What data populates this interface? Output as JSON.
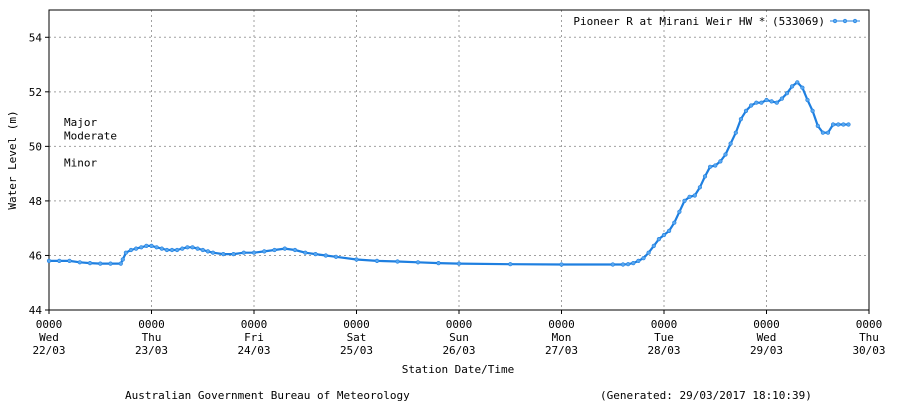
{
  "chart_data": {
    "type": "line",
    "title": "",
    "xlabel": "Station Date/Time",
    "ylabel": "Water Level (m)",
    "ylim": [
      44,
      55
    ],
    "yticks": [
      44,
      46,
      48,
      50,
      52,
      54
    ],
    "grid": true,
    "legend_position": "top-right",
    "x_ticks": [
      {
        "time": "0000",
        "day": "Wed",
        "date": "22/03",
        "d": 0
      },
      {
        "time": "0000",
        "day": "Thu",
        "date": "23/03",
        "d": 1
      },
      {
        "time": "0000",
        "day": "Fri",
        "date": "24/03",
        "d": 2
      },
      {
        "time": "0000",
        "day": "Sat",
        "date": "25/03",
        "d": 3
      },
      {
        "time": "0000",
        "day": "Sun",
        "date": "26/03",
        "d": 4
      },
      {
        "time": "0000",
        "day": "Mon",
        "date": "27/03",
        "d": 5
      },
      {
        "time": "0000",
        "day": "Tue",
        "date": "28/03",
        "d": 6
      },
      {
        "time": "0000",
        "day": "Wed",
        "date": "29/03",
        "d": 7
      },
      {
        "time": "0000",
        "day": "Thu",
        "date": "30/03",
        "d": 8
      }
    ],
    "thresholds": [
      {
        "label": "Major",
        "level": 50.9
      },
      {
        "label": "Moderate",
        "level": 50.4
      },
      {
        "label": "Minor",
        "level": 49.4
      }
    ],
    "series": [
      {
        "name": "Pioneer R at Mirani Weir HW * (533069)",
        "color": "#1e7fe0",
        "x": [
          0.0,
          0.1,
          0.2,
          0.3,
          0.4,
          0.5,
          0.6,
          0.7,
          0.72,
          0.75,
          0.8,
          0.85,
          0.9,
          0.95,
          1.0,
          1.05,
          1.1,
          1.15,
          1.2,
          1.25,
          1.3,
          1.35,
          1.4,
          1.45,
          1.5,
          1.55,
          1.6,
          1.7,
          1.8,
          1.9,
          2.0,
          2.1,
          2.2,
          2.3,
          2.4,
          2.5,
          2.6,
          2.7,
          2.8,
          3.0,
          3.2,
          3.4,
          3.6,
          3.8,
          4.0,
          4.5,
          5.0,
          5.5,
          5.6,
          5.65,
          5.7,
          5.75,
          5.8,
          5.85,
          5.9,
          5.95,
          6.0,
          6.05,
          6.1,
          6.15,
          6.2,
          6.25,
          6.3,
          6.35,
          6.4,
          6.45,
          6.5,
          6.55,
          6.6,
          6.65,
          6.7,
          6.75,
          6.8,
          6.85,
          6.9,
          6.95,
          7.0,
          7.05,
          7.1,
          7.15,
          7.2,
          7.25,
          7.3,
          7.35,
          7.4,
          7.45,
          7.5,
          7.55,
          7.6,
          7.65,
          7.7,
          7.75,
          7.8
        ],
        "y": [
          45.8,
          45.8,
          45.8,
          45.75,
          45.72,
          45.7,
          45.7,
          45.7,
          45.85,
          46.1,
          46.2,
          46.25,
          46.3,
          46.35,
          46.35,
          46.3,
          46.25,
          46.2,
          46.2,
          46.2,
          46.25,
          46.3,
          46.3,
          46.25,
          46.2,
          46.15,
          46.1,
          46.05,
          46.05,
          46.1,
          46.1,
          46.15,
          46.2,
          46.25,
          46.2,
          46.1,
          46.05,
          46.0,
          45.95,
          45.85,
          45.8,
          45.78,
          45.75,
          45.72,
          45.7,
          45.68,
          45.67,
          45.67,
          45.67,
          45.68,
          45.72,
          45.8,
          45.9,
          46.1,
          46.35,
          46.6,
          46.75,
          46.9,
          47.2,
          47.6,
          48.0,
          48.15,
          48.2,
          48.5,
          48.9,
          49.25,
          49.3,
          49.45,
          49.7,
          50.1,
          50.5,
          51.0,
          51.3,
          51.5,
          51.6,
          51.6,
          51.7,
          51.65,
          51.6,
          51.75,
          51.95,
          52.2,
          52.35,
          52.15,
          51.7,
          51.3,
          50.75,
          50.5,
          50.5,
          50.8,
          50.8,
          50.8,
          50.8
        ]
      }
    ]
  },
  "footer": {
    "agency": "Australian Government Bureau of Meteorology",
    "generated": "(Generated: 29/03/2017 18:10:39)"
  }
}
